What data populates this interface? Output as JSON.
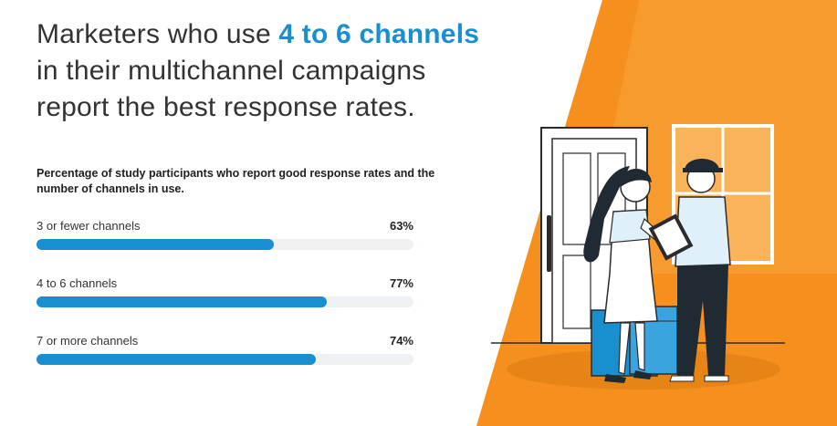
{
  "headline": {
    "part1": "Marketers who use ",
    "highlight": "4 to 6 channels",
    "part2": "in their multichannel campaigns",
    "part3": "report the best response rates."
  },
  "colors": {
    "accent_blue": "#1a8fcf",
    "bar_track": "#eef1f3",
    "background_orange": "#f5901f",
    "background_orange_light": "#f9a43a"
  },
  "illustration": {
    "icons": [
      "door-icon",
      "window-icon",
      "woman-figure",
      "delivery-person-figure",
      "package-boxes",
      "clipboard-icon"
    ]
  },
  "chart_data": {
    "type": "bar",
    "orientation": "horizontal",
    "title": "Percentage of study participants who report good response rates and the number of channels in use.",
    "categories": [
      "3 or fewer channels",
      "4 to 6 channels",
      "7 or more channels"
    ],
    "values": [
      63,
      77,
      74
    ],
    "value_labels": [
      "63%",
      "77%",
      "74%"
    ],
    "xlim": [
      0,
      100
    ],
    "grid": false,
    "legend": "none"
  }
}
